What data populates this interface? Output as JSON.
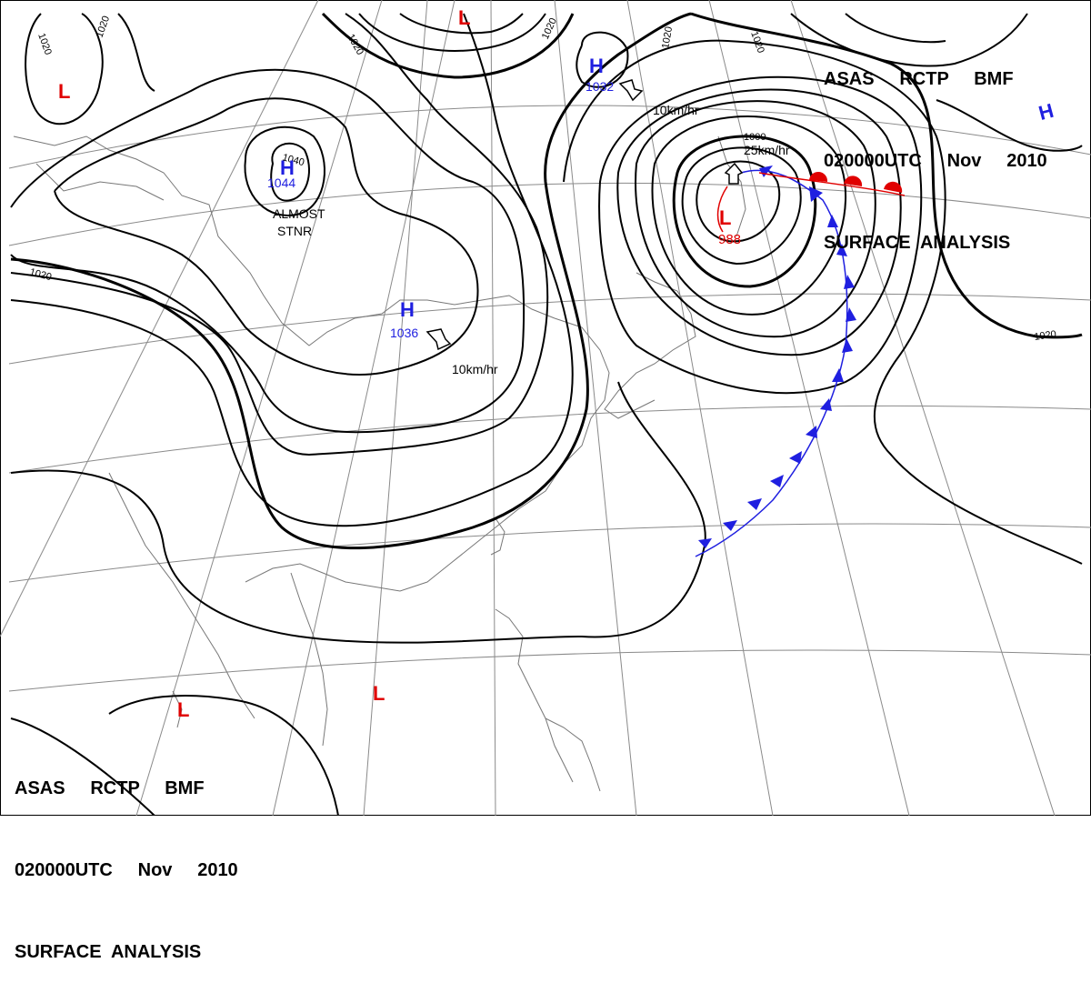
{
  "header": {
    "line1": "ASAS     RCTP     BMF",
    "line2": "020000UTC     Nov     2010",
    "line3": "SURFACE  ANALYSIS"
  },
  "pressure_systems": [
    {
      "type": "H",
      "value": "1044",
      "color": "#1f1fe0"
    },
    {
      "type": "H",
      "value": "1036",
      "color": "#1f1fe0"
    },
    {
      "type": "H",
      "value": "1032",
      "color": "#1f1fe0"
    },
    {
      "type": "H",
      "value": "",
      "color": "#1f1fe0"
    },
    {
      "type": "L",
      "value": "988",
      "color": "#e00000"
    },
    {
      "type": "L",
      "value": "",
      "color": "#e00000"
    },
    {
      "type": "L",
      "value": "",
      "color": "#e00000"
    },
    {
      "type": "L",
      "value": "",
      "color": "#e00000"
    },
    {
      "type": "L",
      "value": "",
      "color": "#e00000"
    }
  ],
  "isobar_labels": [
    "1020",
    "1020",
    "1020",
    "1020",
    "1020",
    "1020",
    "1040",
    "1000",
    "1020",
    "1020"
  ],
  "motion_labels": [
    "10km/hr",
    "10km/hr",
    "25km/hr"
  ],
  "notes": {
    "almost": "ALMOST",
    "stnr": "STNR"
  },
  "colors": {
    "high": "#1f1fe0",
    "low": "#e00000",
    "cold_front": "#1f1fe0",
    "warm_front": "#e00000",
    "isobar": "#000000",
    "coast": "#777777",
    "grid": "#888888"
  }
}
